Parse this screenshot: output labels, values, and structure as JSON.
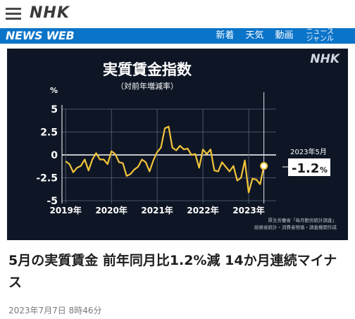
{
  "header": {
    "menu_icon": "hamburger-menu-icon",
    "logo": "NHK"
  },
  "navbar": {
    "brand": "NEWS WEB",
    "links": [
      "新着",
      "天気",
      "動画"
    ],
    "genre_line1": "ニュース",
    "genre_line2": "ジャンル",
    "color": "#0a74c9"
  },
  "figure": {
    "watermark": "NHK",
    "source_line1": "厚生労働省「毎月勤労統計調査」",
    "source_line2": "総務省統計・消費者物価・調査機関作成",
    "callout_date": "2023年5月",
    "callout_value": "-1.2",
    "callout_unit": "%",
    "line_color": "#f2c43a",
    "background_color": "#0e1625"
  },
  "chart_data": {
    "type": "line",
    "title": "実質賃金指数",
    "subtitle": "（対前年増減率）",
    "ylabel": "%",
    "ylim": [
      -5,
      5
    ],
    "yticks": [
      "5",
      "2.5",
      "0",
      "-2.5",
      "-5"
    ],
    "ytick_values": [
      5,
      2.5,
      0,
      -2.5,
      -5
    ],
    "xticks": [
      "2019年",
      "2020年",
      "2021年",
      "2022年",
      "2023年"
    ],
    "xtick_positions": [
      2019,
      2020,
      2021,
      2022,
      2023
    ],
    "grid": true,
    "series": [
      {
        "name": "",
        "x": [
          2019.0,
          2019.083,
          2019.167,
          2019.25,
          2019.333,
          2019.417,
          2019.5,
          2019.583,
          2019.667,
          2019.75,
          2019.833,
          2019.917,
          2020.0,
          2020.083,
          2020.167,
          2020.25,
          2020.333,
          2020.417,
          2020.5,
          2020.583,
          2020.667,
          2020.75,
          2020.833,
          2020.917,
          2021.0,
          2021.083,
          2021.167,
          2021.25,
          2021.333,
          2021.417,
          2021.5,
          2021.583,
          2021.667,
          2021.75,
          2021.833,
          2021.917,
          2022.0,
          2022.083,
          2022.167,
          2022.25,
          2022.333,
          2022.417,
          2022.5,
          2022.583,
          2022.667,
          2022.75,
          2022.833,
          2022.917,
          2023.0,
          2023.083,
          2023.167,
          2023.25,
          2023.333
        ],
        "values": [
          -0.7,
          -1.0,
          -1.9,
          -1.4,
          -1.2,
          -0.5,
          -1.7,
          -0.5,
          0.2,
          -0.5,
          -0.5,
          -1.0,
          0.4,
          0.1,
          -0.8,
          -0.9,
          -2.3,
          -2.1,
          -1.6,
          -1.3,
          -0.5,
          -0.8,
          -1.8,
          -0.6,
          0.3,
          0.8,
          2.9,
          3.1,
          0.8,
          0.5,
          1.0,
          0.6,
          0.7,
          0.0,
          0.1,
          -1.4,
          0.6,
          0.1,
          0.6,
          -1.7,
          -1.8,
          -0.8,
          -1.3,
          -1.8,
          -1.2,
          -2.8,
          -2.5,
          -0.6,
          -4.1,
          -2.6,
          -2.7,
          -3.2,
          -1.2
        ]
      }
    ]
  },
  "headline": "5月の実質賃金 前年同月比1.2%減 14か月連続マイナス",
  "timestamp": "2023年7月7日 8時46分"
}
